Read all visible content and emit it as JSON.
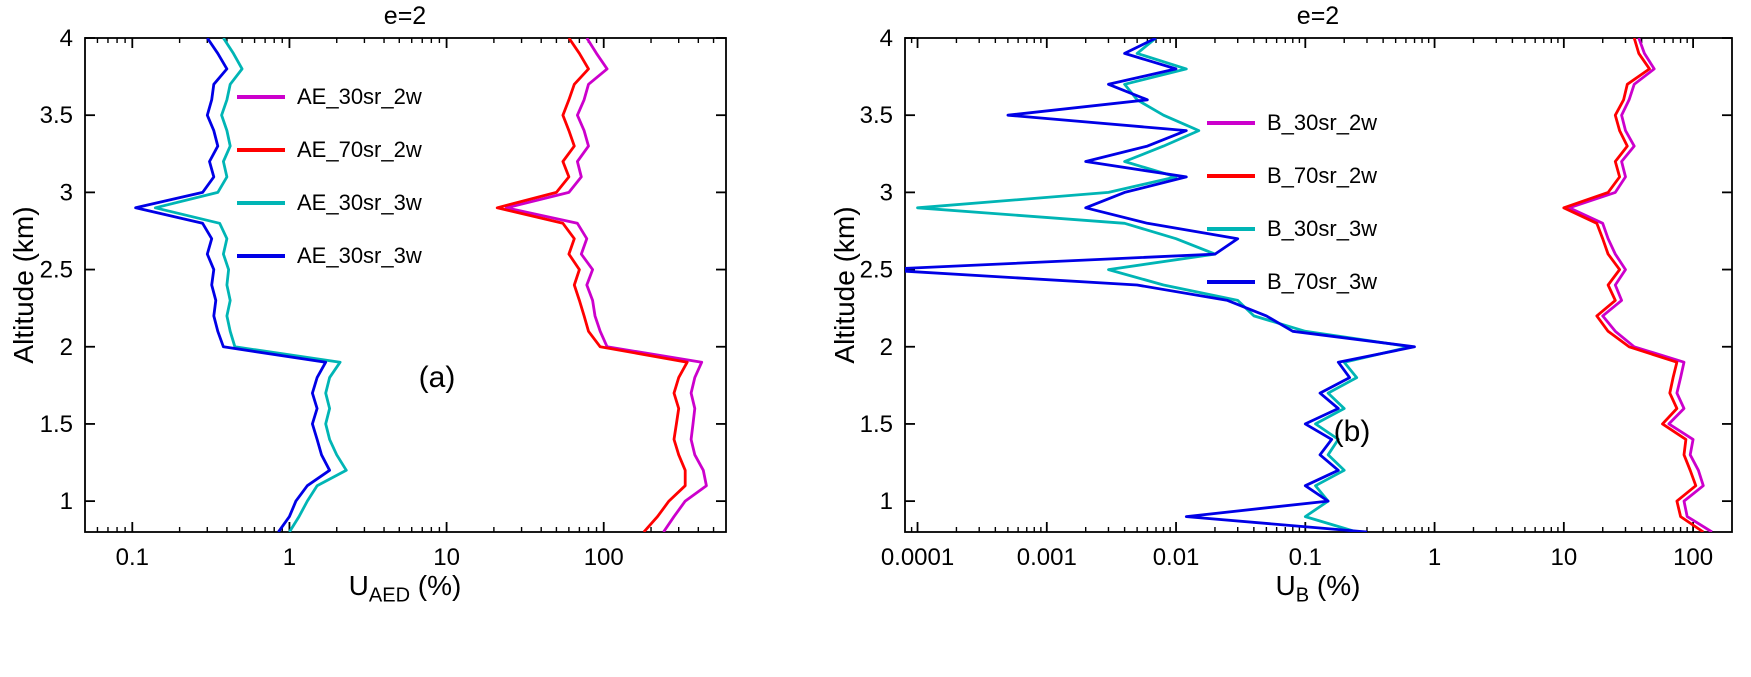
{
  "chart_data": [
    {
      "id": "a",
      "type": "line",
      "title": "e=2",
      "panel_label": "(a)",
      "xlabel": {
        "main": "U",
        "sub": "AED",
        "rest": " (%)"
      },
      "ylabel": "Altitude (km)",
      "xscale": "log",
      "xlim": [
        0.05,
        600
      ],
      "ylim": [
        0.8,
        4
      ],
      "grid": false,
      "legend_position": "upper-left-inside",
      "xticks": {
        "values": [
          0.1,
          1,
          10,
          100
        ],
        "labels": [
          "0.1",
          "1",
          "10",
          "100"
        ]
      },
      "yticks": {
        "values": [
          1,
          1.5,
          2,
          2.5,
          3,
          3.5,
          4
        ],
        "labels": [
          "1",
          "1.5",
          "2",
          "2.5",
          "3",
          "3.5",
          "4"
        ]
      },
      "altitude": [
        0.8,
        0.9,
        1.0,
        1.1,
        1.2,
        1.3,
        1.4,
        1.5,
        1.6,
        1.7,
        1.8,
        1.9,
        2.0,
        2.1,
        2.2,
        2.3,
        2.4,
        2.5,
        2.6,
        2.7,
        2.8,
        2.9,
        3.0,
        3.1,
        3.2,
        3.3,
        3.4,
        3.5,
        3.6,
        3.7,
        3.8,
        3.9,
        4.0
      ],
      "series": [
        {
          "name": "AE_30sr_2w",
          "color": "#cc00cc",
          "values": [
            240,
            280,
            330,
            450,
            430,
            380,
            360,
            370,
            380,
            360,
            380,
            420,
            105,
            95,
            88,
            85,
            78,
            85,
            72,
            78,
            68,
            24,
            60,
            72,
            68,
            80,
            75,
            68,
            75,
            80,
            105,
            90,
            78
          ]
        },
        {
          "name": "AE_70sr_2w",
          "color": "#ff0000",
          "values": [
            180,
            220,
            260,
            330,
            330,
            300,
            280,
            290,
            300,
            280,
            300,
            340,
            95,
            80,
            75,
            70,
            65,
            70,
            60,
            65,
            55,
            21,
            50,
            60,
            55,
            65,
            60,
            55,
            60,
            65,
            80,
            70,
            60
          ]
        },
        {
          "name": "AE_30sr_3w",
          "color": "#00b5b5",
          "values": [
            1.0,
            1.15,
            1.3,
            1.5,
            2.3,
            2.0,
            1.8,
            1.7,
            1.8,
            1.7,
            1.8,
            2.1,
            0.45,
            0.42,
            0.4,
            0.42,
            0.4,
            0.41,
            0.38,
            0.4,
            0.36,
            0.14,
            0.35,
            0.4,
            0.38,
            0.42,
            0.4,
            0.37,
            0.4,
            0.42,
            0.5,
            0.44,
            0.38
          ]
        },
        {
          "name": "AE_30sr_3w",
          "color": "#0000e6",
          "values": [
            0.85,
            1.0,
            1.1,
            1.3,
            1.8,
            1.6,
            1.5,
            1.4,
            1.5,
            1.4,
            1.5,
            1.7,
            0.38,
            0.35,
            0.33,
            0.34,
            0.32,
            0.33,
            0.3,
            0.32,
            0.28,
            0.105,
            0.28,
            0.33,
            0.31,
            0.35,
            0.33,
            0.3,
            0.32,
            0.33,
            0.4,
            0.35,
            0.3
          ]
        }
      ]
    },
    {
      "id": "b",
      "type": "line",
      "title": "e=2",
      "panel_label": "(b)",
      "xlabel": {
        "main": "U",
        "sub": "B",
        "rest": " (%)"
      },
      "ylabel": "Altitude (km)",
      "xscale": "log",
      "xlim": [
        8e-05,
        200
      ],
      "ylim": [
        0.8,
        4
      ],
      "grid": false,
      "legend_position": "upper-middle-inside",
      "xticks": {
        "values": [
          0.0001,
          0.001,
          0.01,
          0.1,
          1,
          10,
          100
        ],
        "labels": [
          "0.0001",
          "0.001",
          "0.01",
          "0.1",
          "1",
          "10",
          "100"
        ]
      },
      "yticks": {
        "values": [
          1,
          1.5,
          2,
          2.5,
          3,
          3.5,
          4
        ],
        "labels": [
          "1",
          "1.5",
          "2",
          "2.5",
          "3",
          "3.5",
          "4"
        ]
      },
      "altitude": [
        0.8,
        0.9,
        1.0,
        1.1,
        1.2,
        1.3,
        1.4,
        1.5,
        1.6,
        1.7,
        1.8,
        1.9,
        2.0,
        2.1,
        2.2,
        2.3,
        2.4,
        2.5,
        2.6,
        2.7,
        2.8,
        2.9,
        3.0,
        3.1,
        3.2,
        3.3,
        3.4,
        3.5,
        3.6,
        3.7,
        3.8,
        3.9,
        4.0
      ],
      "series": [
        {
          "name": "B_30sr_2w",
          "color": "#cc00cc",
          "values": [
            140,
            90,
            85,
            120,
            110,
            95,
            100,
            65,
            85,
            75,
            80,
            85,
            35,
            25,
            20,
            28,
            25,
            30,
            25,
            22,
            20,
            11,
            25,
            30,
            28,
            35,
            30,
            28,
            32,
            35,
            50,
            42,
            38
          ]
        },
        {
          "name": "B_70sr_2w",
          "color": "#ff0000",
          "values": [
            120,
            80,
            75,
            105,
            95,
            85,
            88,
            58,
            75,
            66,
            70,
            75,
            32,
            22,
            18,
            25,
            22,
            27,
            22,
            20,
            18,
            10,
            22,
            27,
            25,
            31,
            27,
            25,
            29,
            31,
            46,
            38,
            35
          ]
        },
        {
          "name": "B_30sr_3w",
          "color": "#00b5b5",
          "values": [
            0.25,
            0.1,
            0.15,
            0.12,
            0.2,
            0.15,
            0.18,
            0.12,
            0.2,
            0.15,
            0.25,
            0.2,
            0.65,
            0.1,
            0.04,
            0.03,
            0.008,
            0.003,
            0.02,
            0.01,
            0.004,
            0.0001,
            0.003,
            0.01,
            0.004,
            0.008,
            0.015,
            0.008,
            0.005,
            0.004,
            0.012,
            0.005,
            0.007
          ]
        },
        {
          "name": "B_70sr_3w",
          "color": "#0000e6",
          "values": [
            0.3,
            0.012,
            0.15,
            0.1,
            0.18,
            0.13,
            0.16,
            0.1,
            0.18,
            0.13,
            0.22,
            0.18,
            0.7,
            0.08,
            0.05,
            0.025,
            0.005,
            5e-05,
            0.02,
            0.03,
            0.006,
            0.002,
            0.004,
            0.012,
            0.002,
            0.006,
            0.012,
            0.0005,
            0.006,
            0.003,
            0.01,
            0.004,
            0.007
          ]
        }
      ]
    }
  ]
}
